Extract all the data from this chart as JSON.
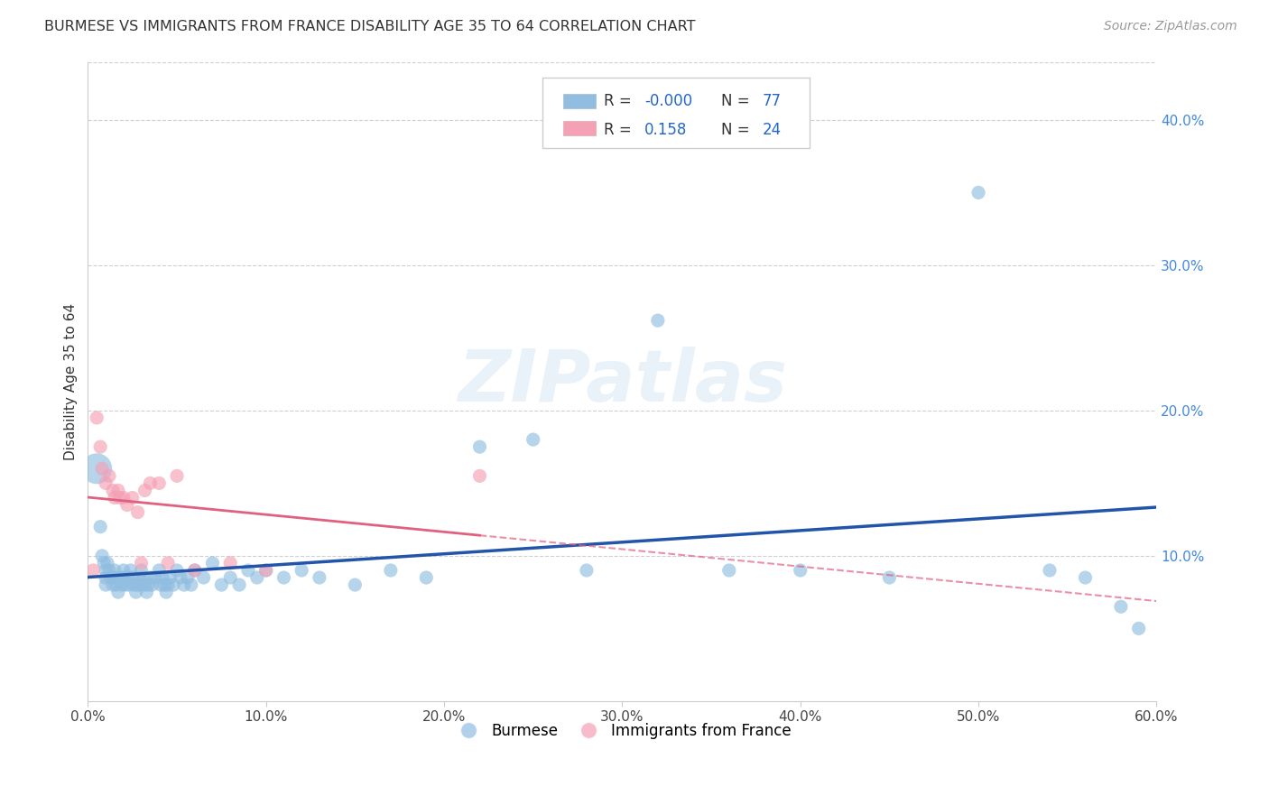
{
  "title": "BURMESE VS IMMIGRANTS FROM FRANCE DISABILITY AGE 35 TO 64 CORRELATION CHART",
  "source": "Source: ZipAtlas.com",
  "ylabel": "Disability Age 35 to 64",
  "xlim": [
    0.0,
    0.6
  ],
  "ylim": [
    0.0,
    0.44
  ],
  "xticks": [
    0.0,
    0.1,
    0.2,
    0.3,
    0.4,
    0.5,
    0.6
  ],
  "yticks_right": [
    0.1,
    0.2,
    0.3,
    0.4
  ],
  "grid_color": "#d0d0d0",
  "background_color": "#ffffff",
  "watermark_text": "ZIPatlas",
  "burmese_color": "#90bde0",
  "france_color": "#f4a0b5",
  "burmese_R": -0.0,
  "burmese_N": 77,
  "france_R": 0.158,
  "france_N": 24,
  "burmese_line_color": "#2255aa",
  "france_line_color": "#e06080",
  "burmese_x": [
    0.005,
    0.007,
    0.008,
    0.009,
    0.01,
    0.01,
    0.01,
    0.011,
    0.012,
    0.013,
    0.014,
    0.015,
    0.015,
    0.016,
    0.017,
    0.018,
    0.019,
    0.02,
    0.02,
    0.021,
    0.022,
    0.023,
    0.024,
    0.025,
    0.026,
    0.027,
    0.028,
    0.029,
    0.03,
    0.03,
    0.031,
    0.032,
    0.033,
    0.034,
    0.035,
    0.036,
    0.038,
    0.04,
    0.041,
    0.042,
    0.043,
    0.044,
    0.045,
    0.046,
    0.048,
    0.05,
    0.052,
    0.054,
    0.056,
    0.058,
    0.06,
    0.065,
    0.07,
    0.075,
    0.08,
    0.085,
    0.09,
    0.095,
    0.1,
    0.11,
    0.12,
    0.13,
    0.15,
    0.17,
    0.19,
    0.22,
    0.25,
    0.28,
    0.32,
    0.36,
    0.4,
    0.45,
    0.5,
    0.54,
    0.56,
    0.58,
    0.59
  ],
  "burmese_y": [
    0.16,
    0.12,
    0.1,
    0.095,
    0.09,
    0.085,
    0.08,
    0.095,
    0.09,
    0.085,
    0.08,
    0.09,
    0.085,
    0.08,
    0.075,
    0.085,
    0.08,
    0.09,
    0.085,
    0.08,
    0.085,
    0.08,
    0.09,
    0.085,
    0.08,
    0.075,
    0.08,
    0.085,
    0.09,
    0.08,
    0.085,
    0.08,
    0.075,
    0.08,
    0.085,
    0.08,
    0.085,
    0.09,
    0.08,
    0.085,
    0.08,
    0.075,
    0.08,
    0.085,
    0.08,
    0.09,
    0.085,
    0.08,
    0.085,
    0.08,
    0.09,
    0.085,
    0.095,
    0.08,
    0.085,
    0.08,
    0.09,
    0.085,
    0.09,
    0.085,
    0.09,
    0.085,
    0.08,
    0.09,
    0.085,
    0.175,
    0.18,
    0.09,
    0.262,
    0.09,
    0.09,
    0.085,
    0.35,
    0.09,
    0.085,
    0.065,
    0.05
  ],
  "burmese_sizes": [
    600,
    120,
    120,
    120,
    120,
    120,
    120,
    120,
    120,
    120,
    120,
    120,
    120,
    120,
    120,
    120,
    120,
    120,
    120,
    120,
    120,
    120,
    120,
    120,
    120,
    120,
    120,
    120,
    120,
    120,
    120,
    120,
    120,
    120,
    120,
    120,
    120,
    120,
    120,
    120,
    120,
    120,
    120,
    120,
    120,
    120,
    120,
    120,
    120,
    120,
    120,
    120,
    120,
    120,
    120,
    120,
    120,
    120,
    120,
    120,
    120,
    120,
    120,
    120,
    120,
    120,
    120,
    120,
    120,
    120,
    120,
    120,
    120,
    120,
    120,
    120,
    120
  ],
  "france_x": [
    0.003,
    0.005,
    0.007,
    0.008,
    0.01,
    0.012,
    0.014,
    0.015,
    0.017,
    0.018,
    0.02,
    0.022,
    0.025,
    0.028,
    0.03,
    0.032,
    0.035,
    0.04,
    0.045,
    0.05,
    0.06,
    0.08,
    0.1,
    0.22
  ],
  "france_y": [
    0.09,
    0.195,
    0.175,
    0.16,
    0.15,
    0.155,
    0.145,
    0.14,
    0.145,
    0.14,
    0.14,
    0.135,
    0.14,
    0.13,
    0.095,
    0.145,
    0.15,
    0.15,
    0.095,
    0.155,
    0.09,
    0.095,
    0.09,
    0.155
  ],
  "france_sizes": [
    120,
    120,
    120,
    120,
    120,
    120,
    120,
    120,
    120,
    120,
    120,
    120,
    120,
    120,
    120,
    120,
    120,
    120,
    120,
    120,
    120,
    120,
    120,
    120
  ]
}
